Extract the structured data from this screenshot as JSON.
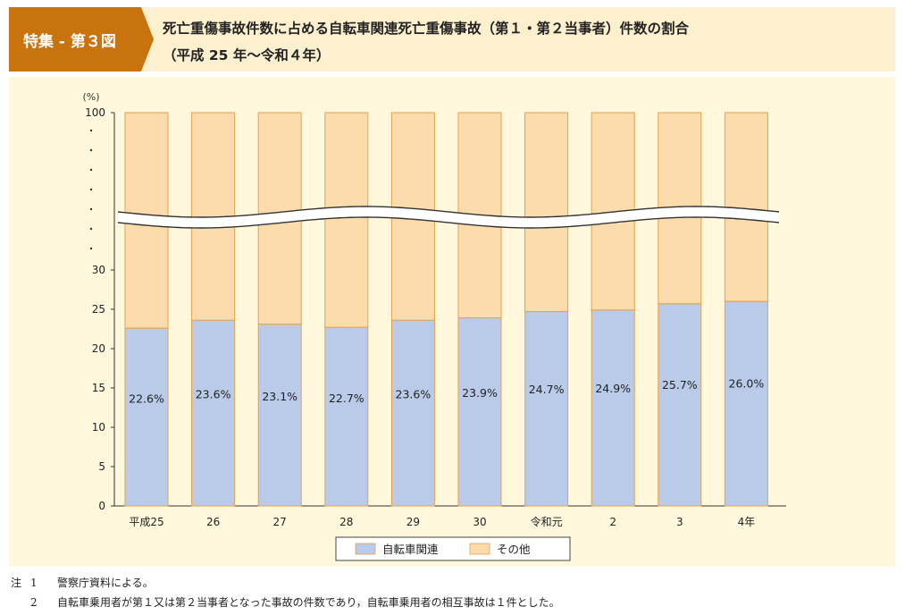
{
  "header": {
    "figure_tag": "特集 - 第３図",
    "title": "死亡重傷事故件数に占める自転車関連死亡重傷事故（第１・第２当事者）件数の割合",
    "subtitle": "（平成 25 年〜令和４年）"
  },
  "colors": {
    "tag_bg": "#c8730d",
    "header_bg": "#fdf0cf",
    "panel_bg": "#fff8dc",
    "bicycle": "#b9cbe8",
    "other": "#fcdcac",
    "bar_border": "#e7a04a"
  },
  "chart_data": {
    "type": "bar",
    "stacked": true,
    "categories": [
      "平成25",
      "26",
      "27",
      "28",
      "29",
      "30",
      "令和元",
      "2",
      "3",
      "4年"
    ],
    "series": [
      {
        "name": "自転車関連",
        "values": [
          22.6,
          23.6,
          23.1,
          22.7,
          23.6,
          23.9,
          24.7,
          24.9,
          25.7,
          26.0
        ]
      },
      {
        "name": "その他",
        "values": [
          77.4,
          76.4,
          76.9,
          77.3,
          76.4,
          76.1,
          75.3,
          75.1,
          74.3,
          74.0
        ]
      }
    ],
    "data_labels": [
      "22.6%",
      "23.6%",
      "23.1%",
      "22.7%",
      "23.6%",
      "23.9%",
      "24.7%",
      "24.9%",
      "25.7%",
      "26.0%"
    ],
    "ylabel": "(%)",
    "ylim": [
      0,
      100
    ],
    "y_ticks": [
      0,
      5,
      10,
      15,
      20,
      25,
      30,
      100
    ],
    "axis_break": [
      30,
      100
    ],
    "legend_position": "bottom-center",
    "grid": false
  },
  "legend": [
    {
      "label": "自転車関連",
      "color": "#b9cbe8"
    },
    {
      "label": "その他",
      "color": "#fcdcac"
    }
  ],
  "notes": {
    "prefix": "注",
    "items": [
      {
        "num": "1",
        "text": "警察庁資料による。"
      },
      {
        "num": "2",
        "text": "自転車乗用者が第１又は第２当事者となった事故の件数であり，自転車乗用者の相互事故は１件とした。"
      }
    ]
  }
}
